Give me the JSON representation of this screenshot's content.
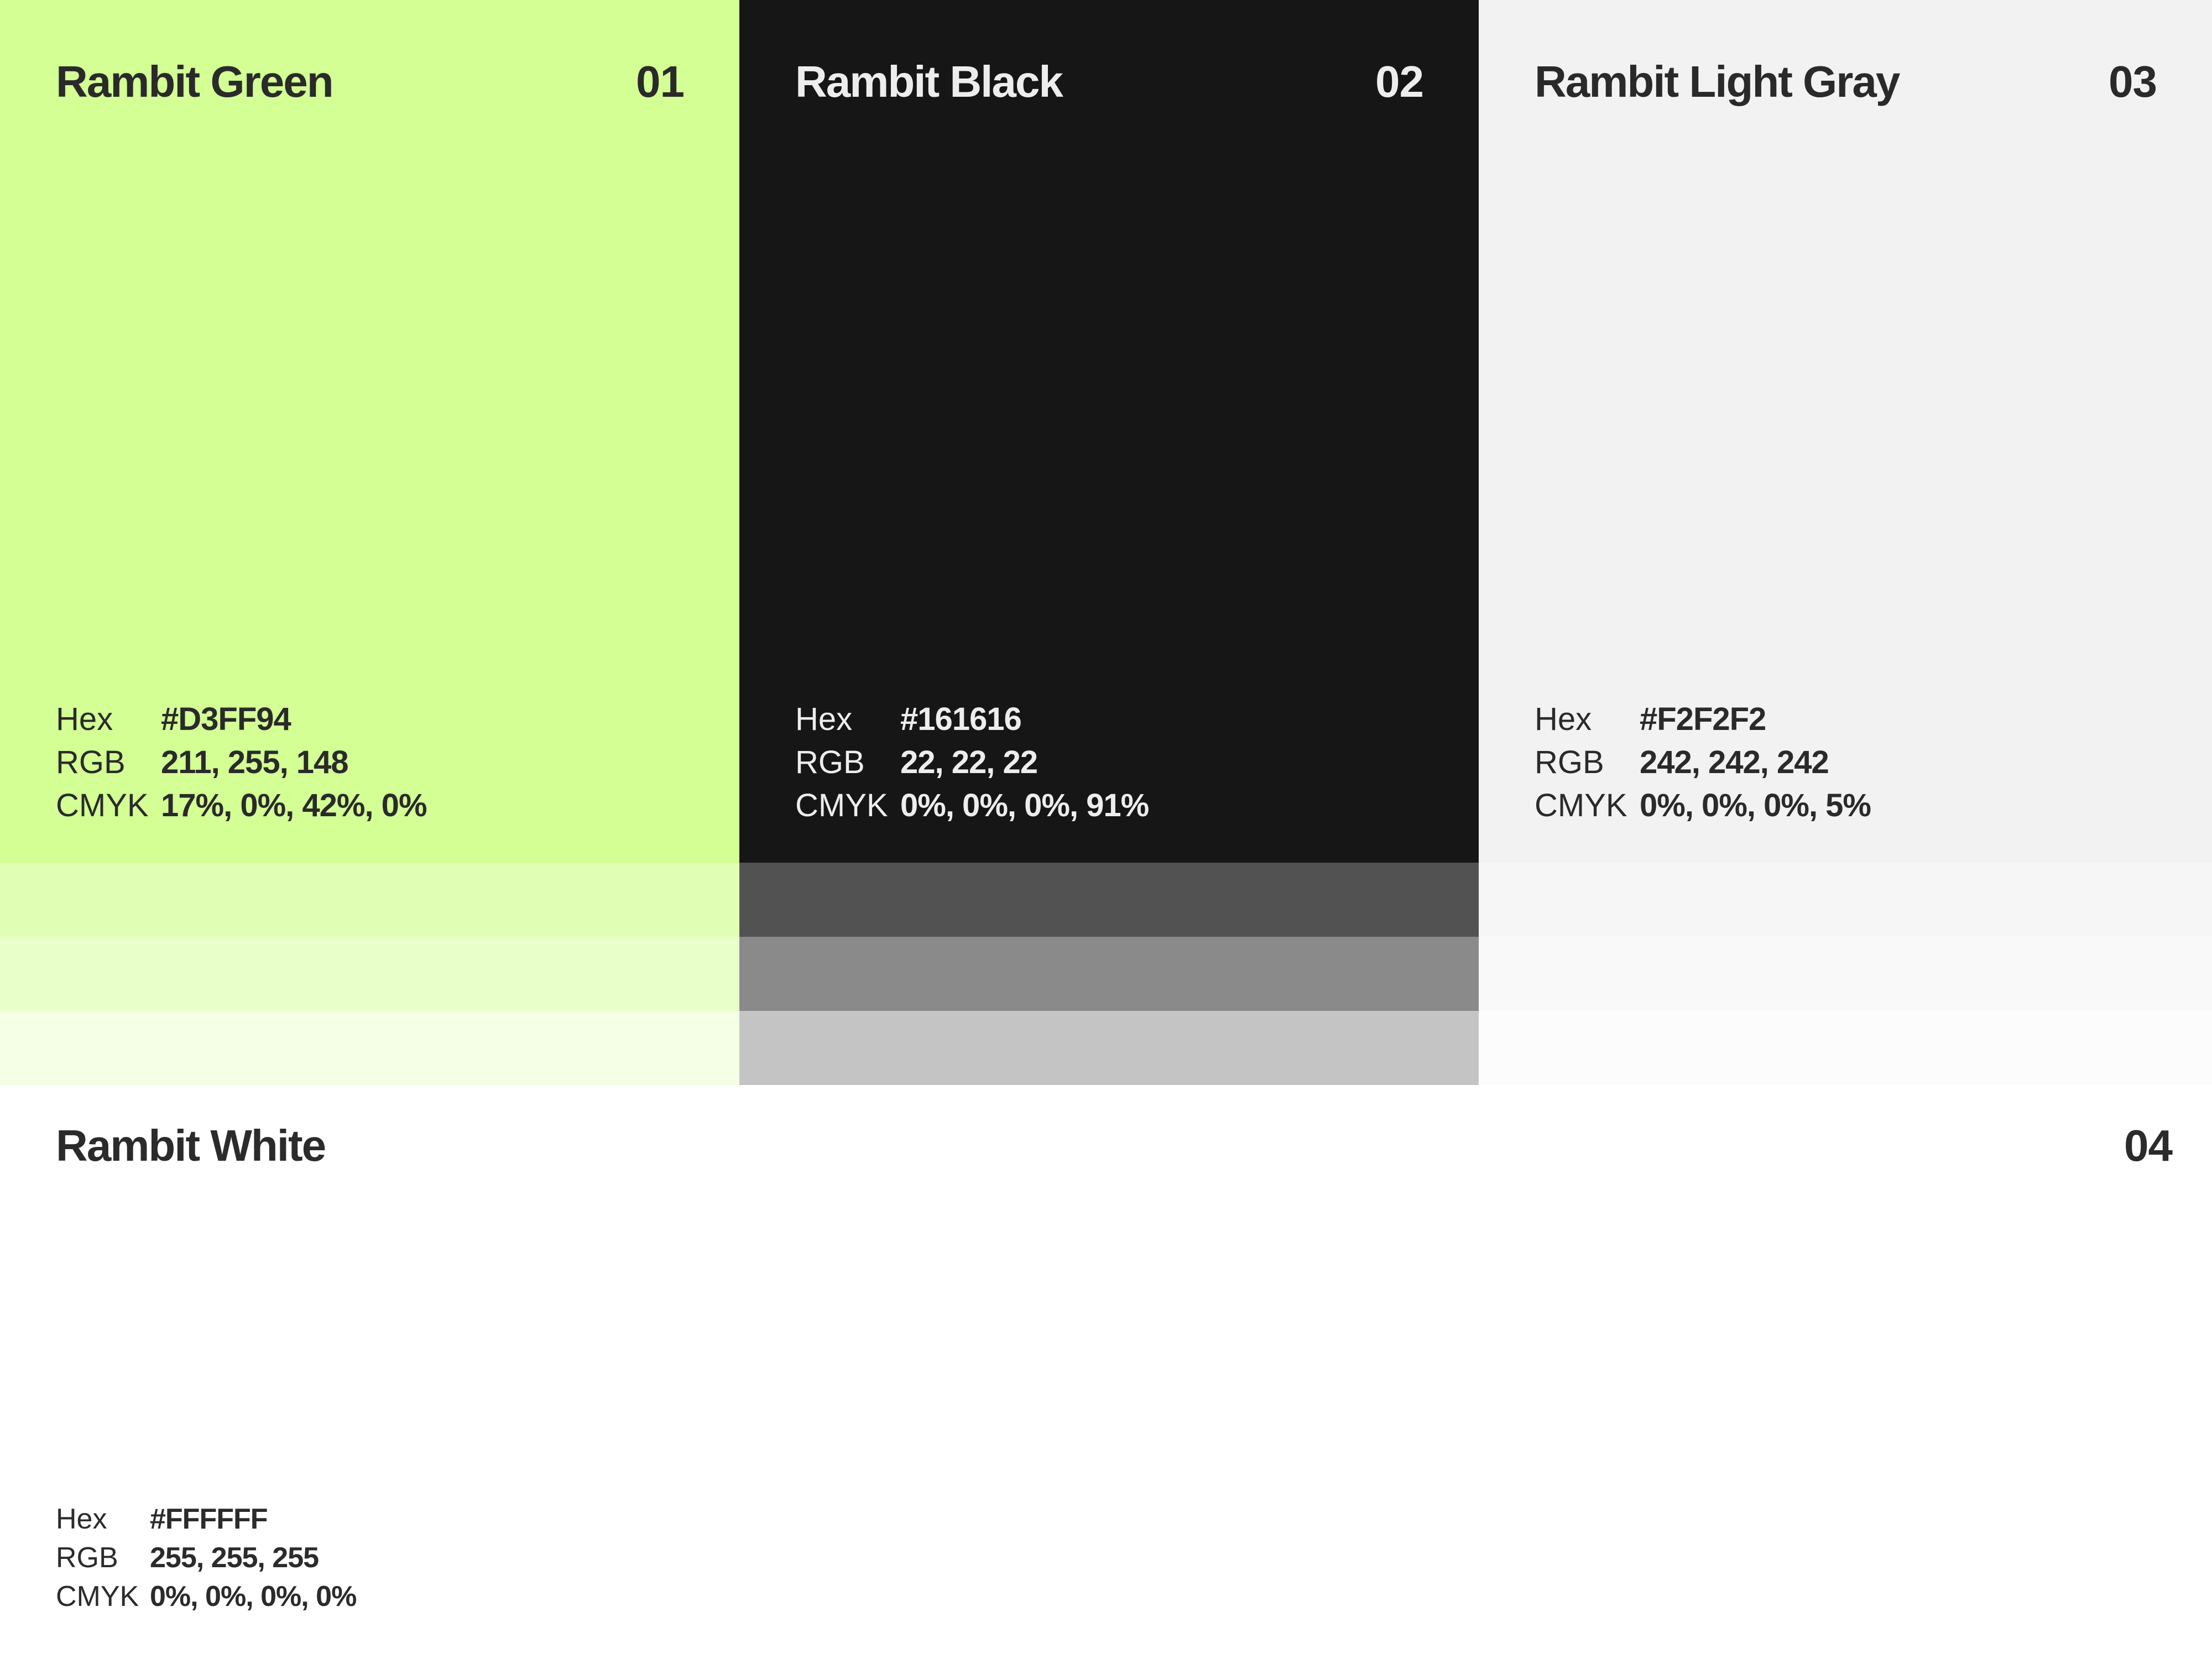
{
  "swatches": [
    {
      "name": "Rambit Green",
      "number": "01",
      "hex_label": "Hex",
      "hex": "#D3FF94",
      "rgb_label": "RGB",
      "rgb": "211, 255, 148",
      "cmyk_label": "CMYK",
      "cmyk": "17%, 0%, 42%, 0%",
      "color": "#D3FF94",
      "text_color": "#2a2a2a",
      "tints": [
        "#E0FFB4",
        "#E9FFCA",
        "#F4FFE5"
      ]
    },
    {
      "name": "Rambit Black",
      "number": "02",
      "hex_label": "Hex",
      "hex": "#161616",
      "rgb_label": "RGB",
      "rgb": "22, 22, 22",
      "cmyk_label": "CMYK",
      "cmyk": "0%, 0%, 0%, 91%",
      "color": "#161616",
      "text_color": "#EDEDED",
      "tints": [
        "#525252",
        "#8A8A8A",
        "#C4C4C4"
      ]
    },
    {
      "name": "Rambit Light Gray",
      "number": "03",
      "hex_label": "Hex",
      "hex": "#F2F2F2",
      "rgb_label": "RGB",
      "rgb": "242, 242, 242",
      "cmyk_label": "CMYK",
      "cmyk": "0%, 0%, 0%, 5%",
      "color": "#F2F2F2",
      "text_color": "#2a2a2a",
      "tints": [
        "#F6F6F6",
        "#F9F9F9",
        "#FCFCFC"
      ]
    }
  ],
  "white": {
    "name": "Rambit White",
    "number": "04",
    "hex_label": "Hex",
    "hex": "#FFFFFF",
    "rgb_label": "RGB",
    "rgb": "255, 255, 255",
    "cmyk_label": "CMYK",
    "cmyk": "0%, 0%, 0%, 0%",
    "color": "#FFFFFF"
  }
}
